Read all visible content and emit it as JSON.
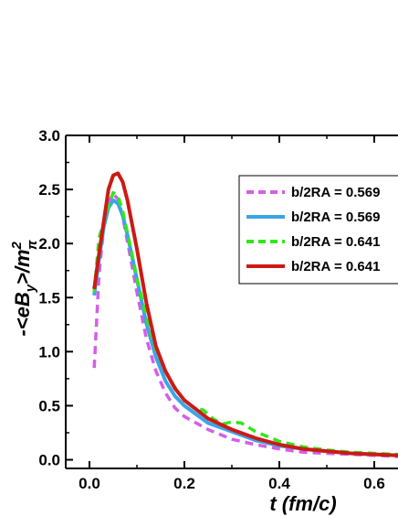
{
  "chart_data": {
    "type": "line",
    "xlabel": "t (fm/c)",
    "ylabel": "-<eBy>/m²π",
    "xlim": [
      -0.05,
      0.65
    ],
    "ylim": [
      -0.08,
      3.0
    ],
    "x_ticks": [
      0.0,
      0.2,
      0.4,
      0.6
    ],
    "x_tick_labels": [
      "0.0",
      "0.2",
      "0.4",
      "0.6"
    ],
    "y_ticks": [
      0.0,
      0.5,
      1.0,
      1.5,
      2.0,
      2.5,
      3.0
    ],
    "y_tick_labels": [
      "0.0",
      "0.5",
      "1.0",
      "1.5",
      "2.0",
      "2.5",
      "3.0"
    ],
    "legend_position": "right",
    "series": [
      {
        "name": "b/2RA = 0.569",
        "color": "#d65de8",
        "style": "dashed",
        "x": [
          0.01,
          0.02,
          0.03,
          0.04,
          0.05,
          0.06,
          0.07,
          0.08,
          0.1,
          0.12,
          0.14,
          0.16,
          0.18,
          0.2,
          0.25,
          0.3,
          0.35,
          0.4,
          0.45,
          0.5,
          0.55,
          0.6,
          0.65
        ],
        "values": [
          0.85,
          1.7,
          2.15,
          2.38,
          2.46,
          2.41,
          2.25,
          2.02,
          1.55,
          1.12,
          0.82,
          0.62,
          0.48,
          0.4,
          0.28,
          0.19,
          0.14,
          0.1,
          0.07,
          0.06,
          0.05,
          0.04,
          0.03
        ]
      },
      {
        "name": "b/2RA = 0.569",
        "color": "#3aa5e6",
        "style": "solid",
        "x": [
          0.01,
          0.02,
          0.03,
          0.04,
          0.05,
          0.06,
          0.07,
          0.08,
          0.1,
          0.12,
          0.14,
          0.16,
          0.18,
          0.2,
          0.25,
          0.3,
          0.35,
          0.4,
          0.45,
          0.5,
          0.55,
          0.6,
          0.65
        ],
        "values": [
          1.52,
          1.85,
          2.15,
          2.33,
          2.4,
          2.37,
          2.26,
          2.08,
          1.67,
          1.26,
          0.95,
          0.73,
          0.59,
          0.5,
          0.34,
          0.26,
          0.18,
          0.13,
          0.1,
          0.08,
          0.06,
          0.05,
          0.04
        ]
      },
      {
        "name": "b/2RA = 0.641",
        "color": "#33e61a",
        "style": "dashed",
        "x": [
          0.01,
          0.02,
          0.03,
          0.04,
          0.05,
          0.06,
          0.07,
          0.08,
          0.1,
          0.12,
          0.14,
          0.16,
          0.18,
          0.2,
          0.22,
          0.24,
          0.26,
          0.28,
          0.3,
          0.32,
          0.35,
          0.4,
          0.45,
          0.5,
          0.55,
          0.6,
          0.65
        ],
        "values": [
          1.55,
          2.05,
          2.2,
          2.35,
          2.47,
          2.44,
          2.3,
          2.1,
          1.68,
          1.32,
          1.02,
          0.82,
          0.67,
          0.55,
          0.48,
          0.46,
          0.38,
          0.33,
          0.35,
          0.34,
          0.26,
          0.17,
          0.12,
          0.09,
          0.07,
          0.06,
          0.05
        ]
      },
      {
        "name": "b/2RA = 0.641",
        "color": "#cc1a14",
        "style": "solid",
        "x": [
          0.01,
          0.02,
          0.03,
          0.04,
          0.05,
          0.06,
          0.07,
          0.08,
          0.1,
          0.12,
          0.14,
          0.16,
          0.18,
          0.2,
          0.25,
          0.3,
          0.35,
          0.4,
          0.45,
          0.5,
          0.55,
          0.6,
          0.65
        ],
        "values": [
          1.58,
          1.9,
          2.2,
          2.5,
          2.63,
          2.65,
          2.57,
          2.4,
          1.95,
          1.45,
          1.05,
          0.82,
          0.66,
          0.55,
          0.38,
          0.28,
          0.2,
          0.14,
          0.1,
          0.08,
          0.06,
          0.05,
          0.04
        ]
      }
    ]
  }
}
